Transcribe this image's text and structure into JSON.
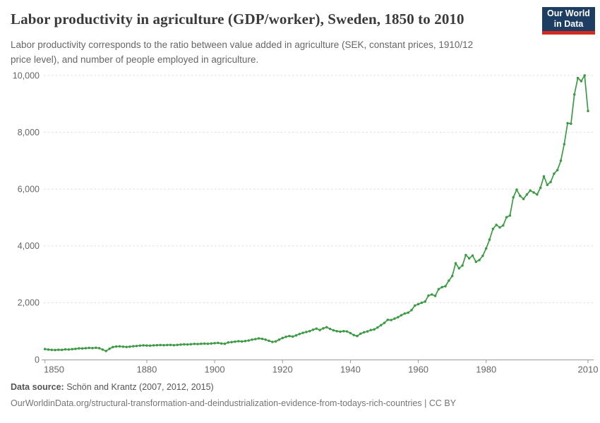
{
  "header": {
    "title": "Labor productivity in agriculture (GDP/worker), Sweden, 1850 to 2010",
    "subtitle_lines": [
      "Labor productivity corresponds to the ratio between value added in agriculture (SEK, constant prices, 1910/12",
      "price level), and number of people employed in agriculture."
    ],
    "logo": {
      "line1": "Our World",
      "line2": "in Data",
      "bg_color": "#1d3d63",
      "bar_color": "#d42b21"
    }
  },
  "footer": {
    "source_label": "Data source:",
    "source_value": " Schön and Krantz (2007, 2012, 2015)",
    "link_line": "OurWorldinData.org/structural-transformation-and-deindustrialization-evidence-from-todays-rich-countries | CC BY"
  },
  "chart_data": {
    "type": "line",
    "title": "Labor productivity in agriculture (GDP/worker), Sweden, 1850 to 2010",
    "series_name": "Sweden",
    "xlabel": "",
    "ylabel": "",
    "x_start": 1850,
    "x_end": 2010,
    "x_step": 1,
    "ylim": [
      0,
      10000
    ],
    "xlim": [
      1850,
      2010
    ],
    "grid": "horizontal-dashed",
    "marker": "circle",
    "legend": "none",
    "series_color": "#3c9a44",
    "axis_color": "#9a9a9a",
    "grid_color": "#dedede",
    "tick_label_color": "#666666",
    "x_ticks": [
      1850,
      1880,
      1900,
      1920,
      1940,
      1960,
      1980,
      2010
    ],
    "y_ticks": [
      {
        "value": 0,
        "label": "0"
      },
      {
        "value": 2000,
        "label": "2,000"
      },
      {
        "value": 4000,
        "label": "4,000"
      },
      {
        "value": 6000,
        "label": "6,000"
      },
      {
        "value": 8000,
        "label": "8,000"
      },
      {
        "value": 10000,
        "label": "10,000"
      }
    ],
    "values": [
      370,
      350,
      340,
      335,
      345,
      340,
      360,
      355,
      365,
      375,
      395,
      390,
      400,
      410,
      405,
      415,
      400,
      350,
      300,
      380,
      440,
      460,
      465,
      455,
      445,
      455,
      470,
      480,
      490,
      500,
      495,
      490,
      500,
      505,
      510,
      505,
      510,
      515,
      505,
      515,
      525,
      535,
      530,
      540,
      550,
      545,
      555,
      560,
      555,
      565,
      575,
      585,
      565,
      555,
      600,
      615,
      630,
      645,
      635,
      650,
      670,
      700,
      720,
      745,
      730,
      700,
      660,
      620,
      640,
      700,
      760,
      800,
      830,
      810,
      850,
      900,
      940,
      970,
      1000,
      1050,
      1090,
      1040,
      1100,
      1140,
      1080,
      1030,
      1000,
      980,
      1000,
      990,
      930,
      860,
      830,
      910,
      960,
      990,
      1040,
      1060,
      1130,
      1210,
      1290,
      1400,
      1390,
      1440,
      1490,
      1560,
      1620,
      1650,
      1740,
      1900,
      1950,
      2000,
      2040,
      2250,
      2290,
      2240,
      2480,
      2550,
      2580,
      2780,
      2940,
      3390,
      3210,
      3310,
      3680,
      3560,
      3660,
      3440,
      3500,
      3650,
      3910,
      4220,
      4600,
      4740,
      4650,
      4720,
      5010,
      5070,
      5710,
      5980,
      5760,
      5650,
      5810,
      5950,
      5880,
      5810,
      6050,
      6450,
      6150,
      6250,
      6540,
      6670,
      7000,
      7580,
      8320,
      8300,
      9330,
      9910,
      9800,
      10000,
      8750
    ]
  }
}
